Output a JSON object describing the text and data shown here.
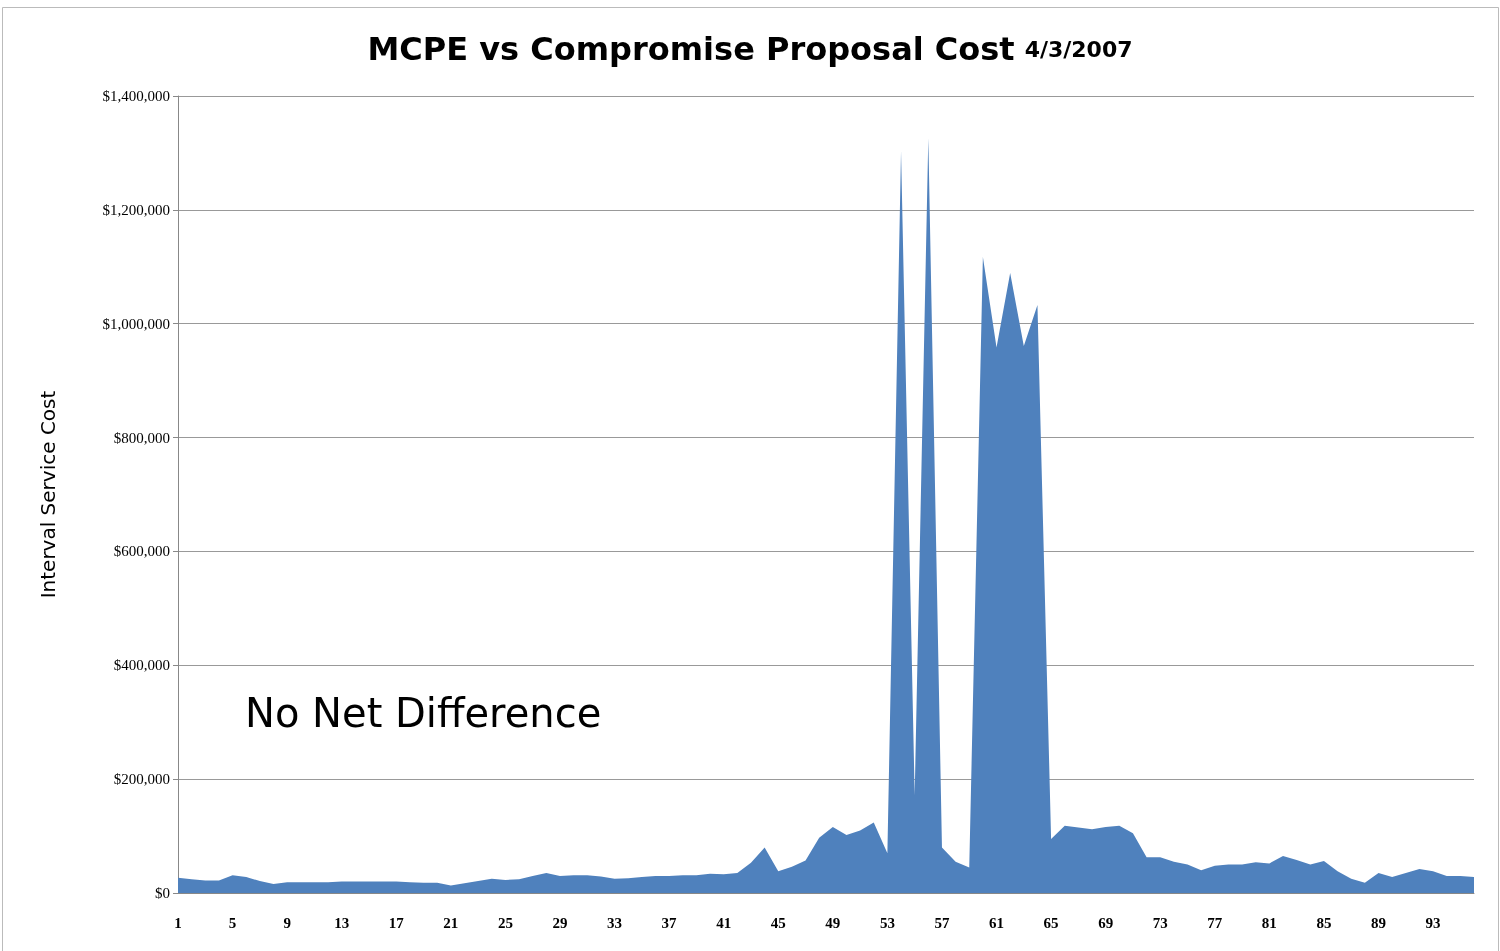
{
  "chart_data": {
    "type": "area",
    "title": "MCPE vs Compromise Proposal Cost",
    "subtitle": "4/3/2007",
    "ylabel": "Interval Service Cost",
    "categories": [
      "1",
      null,
      null,
      null,
      "5",
      null,
      null,
      null,
      "9",
      null,
      null,
      null,
      "13",
      null,
      null,
      null,
      "17",
      null,
      null,
      null,
      "21",
      null,
      null,
      null,
      "25",
      null,
      null,
      null,
      "29",
      null,
      null,
      null,
      "33",
      null,
      null,
      null,
      "37",
      null,
      null,
      null,
      "41",
      null,
      null,
      null,
      "45",
      null,
      null,
      null,
      "49",
      null,
      null,
      null,
      "53",
      null,
      null,
      null,
      "57",
      null,
      null,
      null,
      "61",
      null,
      null,
      null,
      "65",
      null,
      null,
      null,
      "69",
      null,
      null,
      null,
      "73",
      null,
      null,
      null,
      "77",
      null,
      null,
      null,
      "81",
      null,
      null,
      null,
      "85",
      null,
      null,
      null,
      "89",
      null,
      null,
      null,
      "93",
      null,
      null,
      null
    ],
    "series": [
      {
        "color": "#4f81bd",
        "values": [
          27000,
          24000,
          22000,
          22000,
          31000,
          28000,
          21000,
          16000,
          19000,
          19000,
          19000,
          19000,
          20000,
          20000,
          20000,
          20000,
          20000,
          19000,
          18000,
          18000,
          13000,
          17000,
          21000,
          25000,
          23000,
          24000,
          30000,
          35000,
          30000,
          31000,
          31000,
          29000,
          25000,
          26000,
          28000,
          30000,
          30000,
          31000,
          31000,
          34000,
          33000,
          35000,
          53000,
          80000,
          38000,
          46000,
          57000,
          97000,
          116000,
          102000,
          110000,
          124000,
          70000,
          1303000,
          172000,
          1326000,
          80000,
          55000,
          45000,
          1117000,
          958000,
          1089000,
          961000,
          1033000,
          95000,
          118000,
          115000,
          112000,
          116000,
          118000,
          105000,
          63000,
          63000,
          55000,
          50000,
          40000,
          48000,
          50000,
          50000,
          54000,
          52000,
          65000,
          58000,
          50000,
          56000,
          38000,
          25000,
          18000,
          35000,
          28000,
          35000,
          42000,
          38000,
          30000,
          30000,
          28000
        ]
      }
    ],
    "ylim": [
      0,
      1400000
    ],
    "yticks": [
      {
        "value": 0,
        "label": "$0"
      },
      {
        "value": 200000,
        "label": "$200,000"
      },
      {
        "value": 400000,
        "label": "$400,000"
      },
      {
        "value": 600000,
        "label": "$600,000"
      },
      {
        "value": 800000,
        "label": "$800,000"
      },
      {
        "value": 1000000,
        "label": "$1,000,000"
      },
      {
        "value": 1200000,
        "label": "$1,200,000"
      },
      {
        "value": 1400000,
        "label": "$1,400,000"
      }
    ],
    "annotations": [
      "No Net Difference"
    ],
    "grid": "y"
  }
}
